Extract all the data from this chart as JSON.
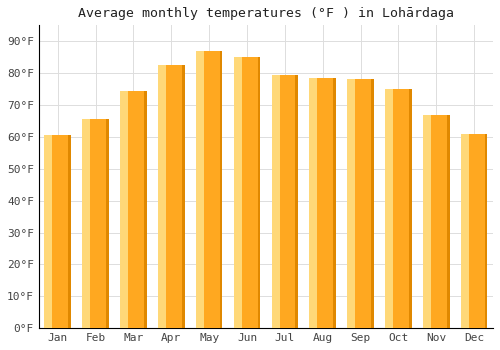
{
  "title": "Average monthly temperatures (°F ) in Lohārdaga",
  "months": [
    "Jan",
    "Feb",
    "Mar",
    "Apr",
    "May",
    "Jun",
    "Jul",
    "Aug",
    "Sep",
    "Oct",
    "Nov",
    "Dec"
  ],
  "values": [
    60.5,
    65.5,
    74.5,
    82.5,
    87.0,
    85.0,
    79.5,
    78.5,
    78.0,
    75.0,
    67.0,
    61.0
  ],
  "bar_color_main": "#FFA820",
  "bar_color_light": "#FFD878",
  "bar_color_dark": "#E08800",
  "background_color": "#FFFFFF",
  "plot_bg_color": "#FFFFFF",
  "grid_color": "#DDDDDD",
  "spine_color": "#000000",
  "text_color": "#444444",
  "ylim": [
    0,
    95
  ],
  "yticks": [
    0,
    10,
    20,
    30,
    40,
    50,
    60,
    70,
    80,
    90
  ],
  "ytick_labels": [
    "0°F",
    "10°F",
    "20°F",
    "30°F",
    "40°F",
    "50°F",
    "60°F",
    "70°F",
    "80°F",
    "90°F"
  ],
  "title_fontsize": 9.5,
  "tick_fontsize": 8,
  "bar_width": 0.7,
  "figsize": [
    5.0,
    3.5
  ],
  "dpi": 100
}
